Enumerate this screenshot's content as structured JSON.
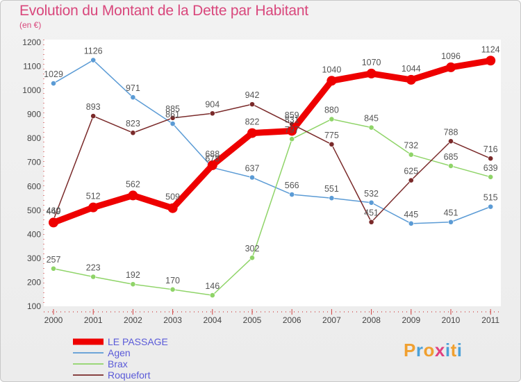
{
  "title": "Evolution du Montant de la Dette par Habitant",
  "unit_label": "(en €)",
  "logo_text": "Proxiti",
  "logo_colors": [
    "#f0a030",
    "#4aa0d8",
    "#f0a030",
    "#e04080",
    "#4aa0d8",
    "#f0a030",
    "#4aa0d8"
  ],
  "chart_data": {
    "type": "line",
    "x": [
      "2000",
      "2001",
      "2002",
      "2003",
      "2004",
      "2005",
      "2006",
      "2007",
      "2008",
      "2009",
      "2010",
      "2011"
    ],
    "ylim": [
      100,
      1200
    ],
    "yticks": [
      100,
      200,
      300,
      400,
      500,
      600,
      700,
      800,
      900,
      1000,
      1100,
      1200
    ],
    "grid": false,
    "legend_position": "bottom-left",
    "series": [
      {
        "name": "Agen",
        "color": "#5b9bd5",
        "values": [
          1029,
          1126,
          971,
          861,
          678,
          637,
          566,
          551,
          532,
          445,
          451,
          515
        ],
        "labels": [
          "1029",
          "1126",
          "971",
          "861",
          "678",
          "637",
          "566",
          "551",
          "532",
          "445",
          "451",
          "515"
        ]
      },
      {
        "name": "Brax",
        "color": "#8fd468",
        "values": [
          257,
          223,
          192,
          170,
          146,
          302,
          797,
          880,
          845,
          732,
          685,
          639
        ],
        "labels": [
          "257",
          "223",
          "192",
          "170",
          "146",
          "302",
          "797",
          "880",
          "845",
          "732",
          "685",
          "639"
        ]
      },
      {
        "name": "Roquefort",
        "color": "#7a2a2a",
        "values": [
          460,
          893,
          823,
          885,
          904,
          942,
          859,
          775,
          451,
          625,
          788,
          716
        ],
        "labels": [
          "460",
          "893",
          "823",
          "885",
          "904",
          "942",
          "859",
          "775",
          "451",
          "625",
          "788",
          "716"
        ]
      },
      {
        "name": "LE PASSAGE",
        "color": "#ee0000",
        "values": [
          449,
          512,
          562,
          509,
          688,
          822,
          831,
          1040,
          1070,
          1044,
          1096,
          1124
        ],
        "labels": [
          "449",
          "512",
          "562",
          "509",
          "688",
          "822",
          "831",
          "1040",
          "1070",
          "1044",
          "1096",
          "1124"
        ]
      }
    ],
    "legend_order": [
      "LE PASSAGE",
      "Agen",
      "Brax",
      "Roquefort"
    ]
  }
}
